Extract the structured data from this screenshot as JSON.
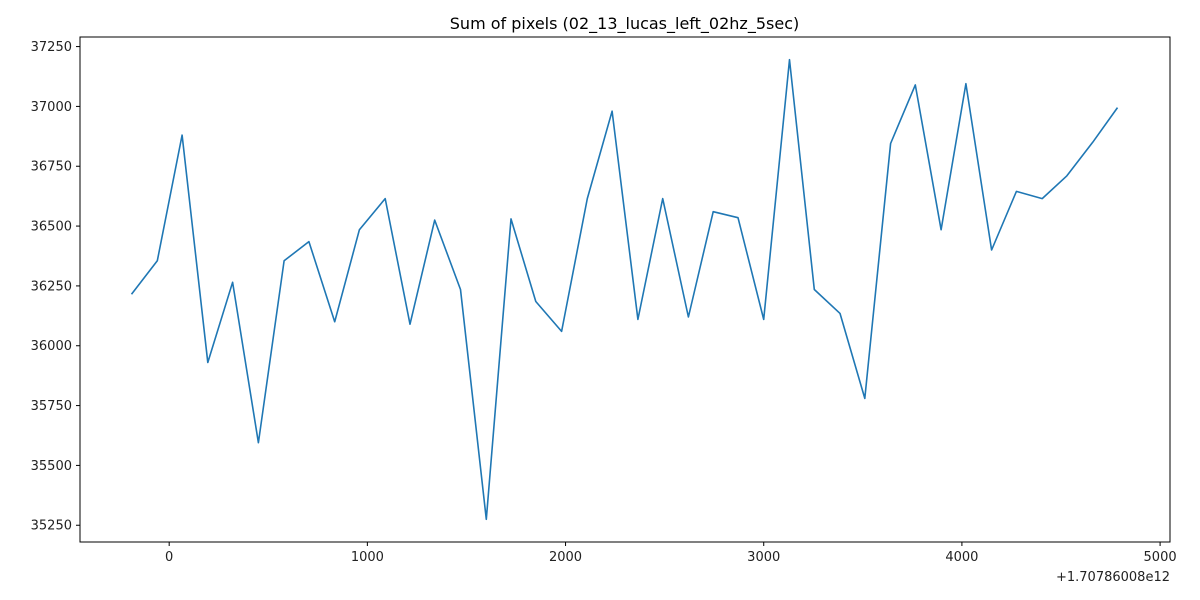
{
  "chart_data": {
    "type": "line",
    "title": "Sum of pixels (02_13_lucas_left_02hz_5sec)",
    "xlabel": "",
    "ylabel": "",
    "x_offset_label": "+1.70786008e12",
    "xlim": [
      -450,
      5050
    ],
    "ylim": [
      35180,
      37290
    ],
    "xticks": [
      0,
      1000,
      2000,
      3000,
      4000,
      5000
    ],
    "yticks": [
      35250,
      35500,
      35750,
      36000,
      36250,
      36500,
      36750,
      37000,
      37250
    ],
    "grid": false,
    "legend": "none",
    "series": [
      {
        "color": "#1f77b4",
        "x": [
          -190,
          -60,
          65,
          195,
          320,
          450,
          580,
          705,
          835,
          960,
          1090,
          1215,
          1340,
          1470,
          1600,
          1725,
          1850,
          1980,
          2110,
          2235,
          2365,
          2490,
          2620,
          2745,
          2870,
          3000,
          3130,
          3255,
          3385,
          3510,
          3640,
          3765,
          3895,
          4020,
          4150,
          4275,
          4405,
          4530,
          4660,
          4785
        ],
        "y": [
          36215,
          36355,
          36880,
          35930,
          36265,
          35595,
          36355,
          36435,
          36100,
          36485,
          36615,
          36090,
          36525,
          36235,
          35275,
          36530,
          36185,
          36060,
          36615,
          36980,
          36110,
          36615,
          36120,
          36560,
          36535,
          36110,
          37195,
          36235,
          36135,
          35780,
          36845,
          37090,
          36485,
          37095,
          36400,
          36645,
          36615,
          36710,
          36850,
          36995
        ]
      }
    ]
  }
}
